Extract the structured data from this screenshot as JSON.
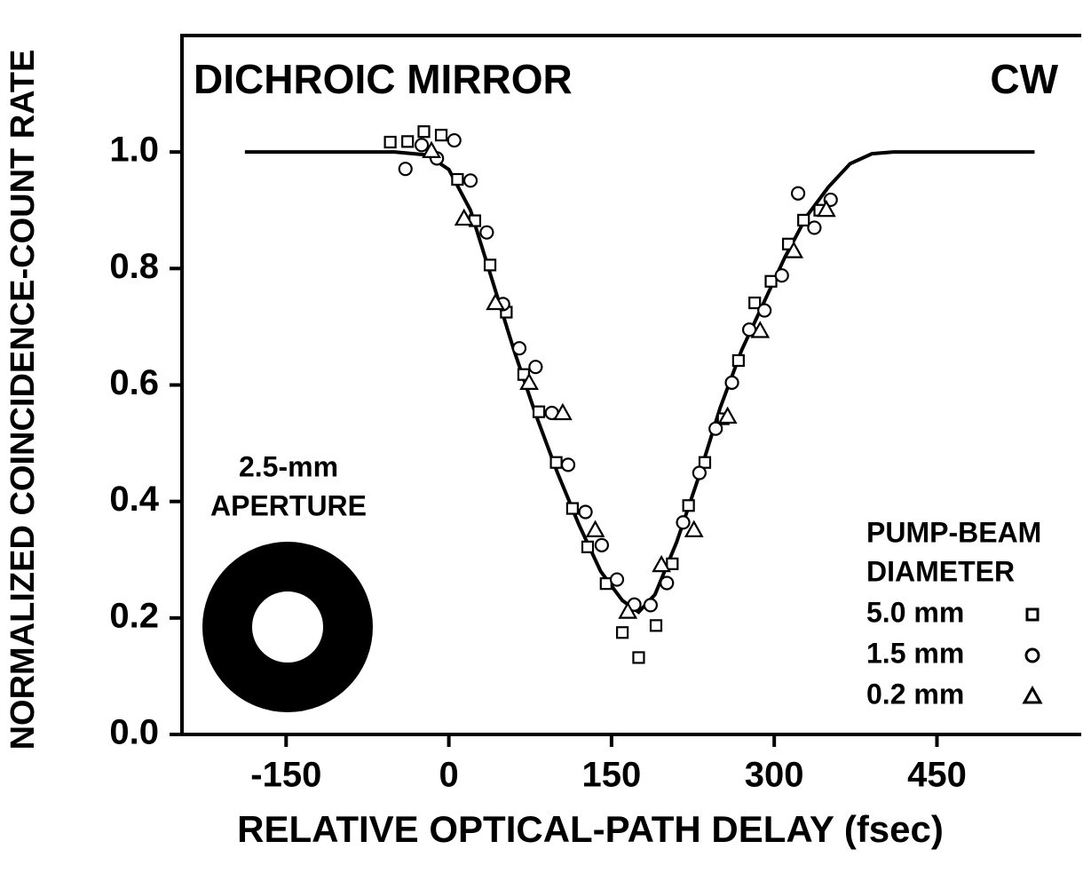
{
  "chart_data": {
    "type": "scatter",
    "title": "DICHROIC MIRROR",
    "annotations": [
      "CW",
      "2.5-mm",
      "APERTURE"
    ],
    "xlabel": "RELATIVE OPTICAL-PATH DELAY (fsec)",
    "ylabel": "NORMALIZED COINCIDENCE-COUNT RATE",
    "legend_title": [
      "PUMP-BEAM",
      "DIAMETER"
    ],
    "legend": "lower right",
    "xlim": [
      -246,
      583
    ],
    "ylim": [
      0,
      1.2
    ],
    "xticks": [
      -150,
      0,
      150,
      300,
      450
    ],
    "yticks": [
      {
        "value": 0,
        "label": "0.0"
      },
      0.2,
      0.4,
      0.6,
      0.8,
      {
        "value": 1,
        "label": "1.0"
      }
    ],
    "curve": {
      "color": "#000000",
      "x": [
        -188,
        -50,
        -20,
        0,
        20,
        40,
        60,
        80,
        100,
        120,
        140,
        160,
        175,
        190,
        210,
        230,
        250,
        270,
        290,
        310,
        330,
        350,
        370,
        390,
        410,
        540
      ],
      "values": [
        1,
        1,
        0.995,
        0.97,
        0.9,
        0.78,
        0.66,
        0.55,
        0.45,
        0.36,
        0.28,
        0.23,
        0.21,
        0.24,
        0.33,
        0.44,
        0.56,
        0.66,
        0.74,
        0.82,
        0.89,
        0.94,
        0.98,
        0.997,
        1,
        1
      ]
    },
    "series": [
      {
        "name": "5.0 mm",
        "marker": "square",
        "color": "#000000",
        "x": [
          -54,
          -38,
          -23,
          -7,
          8,
          24,
          38,
          53,
          69,
          83,
          99,
          114,
          128,
          145,
          160,
          175,
          191,
          206,
          221,
          236,
          253,
          267,
          282,
          297,
          313,
          327,
          342
        ],
        "values": [
          1.017,
          1.018,
          1.035,
          1.029,
          0.953,
          0.882,
          0.806,
          0.725,
          0.618,
          0.554,
          0.467,
          0.388,
          0.322,
          0.259,
          0.175,
          0.132,
          0.187,
          0.293,
          0.393,
          0.467,
          0.542,
          0.642,
          0.741,
          0.778,
          0.842,
          0.883,
          0.9
        ]
      },
      {
        "name": "1.5 mm",
        "marker": "circle",
        "color": "#000000",
        "x": [
          -40,
          -25,
          -11,
          5,
          20,
          35,
          50,
          65,
          80,
          95,
          110,
          126,
          141,
          155,
          171,
          186,
          201,
          216,
          231,
          246,
          261,
          277,
          291,
          307,
          322,
          337,
          352
        ],
        "values": [
          0.971,
          1.012,
          0.989,
          1.02,
          0.951,
          0.862,
          0.739,
          0.663,
          0.631,
          0.552,
          0.463,
          0.382,
          0.325,
          0.266,
          0.223,
          0.222,
          0.26,
          0.364,
          0.449,
          0.525,
          0.604,
          0.695,
          0.728,
          0.788,
          0.929,
          0.87,
          0.918
        ]
      },
      {
        "name": "0.2 mm",
        "marker": "triangle",
        "color": "#000000",
        "x": [
          -16,
          14,
          43,
          74,
          105,
          135,
          165,
          196,
          226,
          257,
          287,
          318,
          348
        ],
        "values": [
          1.002,
          0.886,
          0.741,
          0.604,
          0.552,
          0.351,
          0.211,
          0.291,
          0.351,
          0.546,
          0.693,
          0.83,
          0.901
        ]
      }
    ]
  }
}
